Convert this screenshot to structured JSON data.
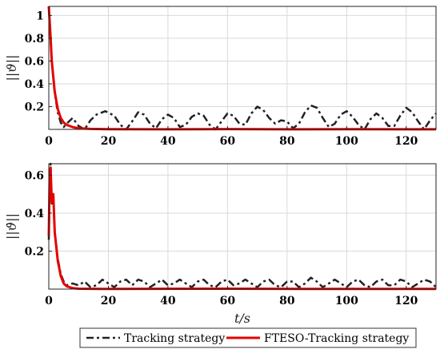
{
  "chart_data": [
    {
      "type": "line",
      "ylabel": "||ϑ||",
      "xlabel": "",
      "xlim": [
        0,
        130
      ],
      "ylim": [
        0,
        1.08
      ],
      "xticks": [
        0,
        20,
        40,
        60,
        80,
        100,
        120
      ],
      "yticks": [
        0.2,
        0.4,
        0.6,
        0.8,
        1
      ],
      "ytick_labels": [
        "0.2",
        "0.4",
        "0.6",
        "0.8",
        "1"
      ],
      "grid": true,
      "series": [
        {
          "name": "Tracking strategy",
          "color": "#222222",
          "dash": "dashdot",
          "points": [
            [
              0,
              1.08
            ],
            [
              1,
              0.6
            ],
            [
              2,
              0.32
            ],
            [
              3,
              0.15
            ],
            [
              4,
              0.06
            ],
            [
              5,
              0.02
            ],
            [
              6,
              0.05
            ],
            [
              8,
              0.1
            ],
            [
              10,
              0.03
            ],
            [
              12,
              0.0
            ],
            [
              14,
              0.08
            ],
            [
              16,
              0.13
            ],
            [
              19,
              0.16
            ],
            [
              22,
              0.12
            ],
            [
              24,
              0.04
            ],
            [
              26,
              0.0
            ],
            [
              28,
              0.07
            ],
            [
              30,
              0.15
            ],
            [
              32,
              0.13
            ],
            [
              34,
              0.05
            ],
            [
              36,
              0.01
            ],
            [
              38,
              0.09
            ],
            [
              40,
              0.13
            ],
            [
              42,
              0.1
            ],
            [
              44,
              0.02
            ],
            [
              46,
              0.04
            ],
            [
              48,
              0.11
            ],
            [
              50,
              0.14
            ],
            [
              52,
              0.12
            ],
            [
              54,
              0.04
            ],
            [
              56,
              0.0
            ],
            [
              58,
              0.07
            ],
            [
              60,
              0.14
            ],
            [
              62,
              0.12
            ],
            [
              64,
              0.05
            ],
            [
              66,
              0.04
            ],
            [
              68,
              0.14
            ],
            [
              70,
              0.2
            ],
            [
              72,
              0.17
            ],
            [
              74,
              0.1
            ],
            [
              76,
              0.05
            ],
            [
              78,
              0.08
            ],
            [
              80,
              0.07
            ],
            [
              82,
              0.01
            ],
            [
              84,
              0.05
            ],
            [
              86,
              0.15
            ],
            [
              88,
              0.21
            ],
            [
              90,
              0.19
            ],
            [
              92,
              0.1
            ],
            [
              94,
              0.02
            ],
            [
              96,
              0.05
            ],
            [
              98,
              0.13
            ],
            [
              100,
              0.16
            ],
            [
              102,
              0.11
            ],
            [
              104,
              0.04
            ],
            [
              106,
              0.0
            ],
            [
              108,
              0.09
            ],
            [
              110,
              0.14
            ],
            [
              112,
              0.1
            ],
            [
              114,
              0.03
            ],
            [
              116,
              0.03
            ],
            [
              118,
              0.12
            ],
            [
              120,
              0.19
            ],
            [
              122,
              0.15
            ],
            [
              124,
              0.07
            ],
            [
              126,
              0.0
            ],
            [
              128,
              0.08
            ],
            [
              130,
              0.14
            ]
          ]
        },
        {
          "name": "FTESO-Tracking strategy",
          "color": "#e60000",
          "dash": "solid",
          "points": [
            [
              0,
              1.08
            ],
            [
              0.5,
              0.85
            ],
            [
              1,
              0.6
            ],
            [
              2,
              0.33
            ],
            [
              3,
              0.18
            ],
            [
              4,
              0.1
            ],
            [
              5,
              0.06
            ],
            [
              6,
              0.04
            ],
            [
              8,
              0.02
            ],
            [
              10,
              0.01
            ],
            [
              14,
              0.004
            ],
            [
              20,
              0.002
            ],
            [
              40,
              0.001
            ],
            [
              60,
              0.003
            ],
            [
              80,
              0.001
            ],
            [
              100,
              0.002
            ],
            [
              120,
              0.001
            ],
            [
              130,
              0.001
            ]
          ]
        }
      ]
    },
    {
      "type": "line",
      "ylabel": "||ϑ̇||",
      "xlabel": "t/s",
      "xlim": [
        0,
        130
      ],
      "ylim": [
        0,
        0.66
      ],
      "xticks": [
        0,
        20,
        40,
        60,
        80,
        100,
        120
      ],
      "yticks": [
        0.2,
        0.4,
        0.6
      ],
      "ytick_labels": [
        "0.2",
        "0.4",
        "0.6"
      ],
      "grid": true,
      "series": [
        {
          "name": "Tracking strategy",
          "color": "#222222",
          "dash": "dashdot",
          "points": [
            [
              0,
              0.26
            ],
            [
              0.3,
              0.55
            ],
            [
              0.6,
              0.66
            ],
            [
              1,
              0.45
            ],
            [
              1.5,
              0.5
            ],
            [
              2,
              0.3
            ],
            [
              3,
              0.16
            ],
            [
              4,
              0.08
            ],
            [
              5,
              0.04
            ],
            [
              6,
              0.02
            ],
            [
              8,
              0.03
            ],
            [
              10,
              0.02
            ],
            [
              12,
              0.04
            ],
            [
              14,
              0.01
            ],
            [
              16,
              0.02
            ],
            [
              18,
              0.05
            ],
            [
              20,
              0.03
            ],
            [
              22,
              0.01
            ],
            [
              24,
              0.04
            ],
            [
              26,
              0.05
            ],
            [
              28,
              0.02
            ],
            [
              30,
              0.05
            ],
            [
              32,
              0.04
            ],
            [
              34,
              0.01
            ],
            [
              36,
              0.03
            ],
            [
              38,
              0.05
            ],
            [
              40,
              0.02
            ],
            [
              42,
              0.03
            ],
            [
              44,
              0.05
            ],
            [
              46,
              0.03
            ],
            [
              48,
              0.01
            ],
            [
              50,
              0.04
            ],
            [
              52,
              0.05
            ],
            [
              54,
              0.02
            ],
            [
              56,
              0.01
            ],
            [
              58,
              0.04
            ],
            [
              60,
              0.05
            ],
            [
              62,
              0.02
            ],
            [
              64,
              0.03
            ],
            [
              66,
              0.05
            ],
            [
              68,
              0.03
            ],
            [
              70,
              0.01
            ],
            [
              72,
              0.04
            ],
            [
              74,
              0.05
            ],
            [
              76,
              0.02
            ],
            [
              78,
              0.01
            ],
            [
              80,
              0.04
            ],
            [
              82,
              0.04
            ],
            [
              84,
              0.01
            ],
            [
              86,
              0.03
            ],
            [
              88,
              0.06
            ],
            [
              90,
              0.04
            ],
            [
              92,
              0.01
            ],
            [
              94,
              0.03
            ],
            [
              96,
              0.05
            ],
            [
              98,
              0.03
            ],
            [
              100,
              0.01
            ],
            [
              102,
              0.04
            ],
            [
              104,
              0.05
            ],
            [
              106,
              0.02
            ],
            [
              108,
              0.01
            ],
            [
              110,
              0.04
            ],
            [
              112,
              0.05
            ],
            [
              114,
              0.02
            ],
            [
              116,
              0.02
            ],
            [
              118,
              0.05
            ],
            [
              120,
              0.04
            ],
            [
              122,
              0.01
            ],
            [
              124,
              0.03
            ],
            [
              126,
              0.05
            ],
            [
              128,
              0.04
            ],
            [
              130,
              0.01
            ]
          ]
        },
        {
          "name": "FTESO-Tracking strategy",
          "color": "#e60000",
          "dash": "solid",
          "points": [
            [
              0,
              0.28
            ],
            [
              0.3,
              0.6
            ],
            [
              0.6,
              0.64
            ],
            [
              1,
              0.46
            ],
            [
              1.5,
              0.5
            ],
            [
              2,
              0.3
            ],
            [
              3,
              0.15
            ],
            [
              4,
              0.07
            ],
            [
              5,
              0.03
            ],
            [
              6,
              0.015
            ],
            [
              8,
              0.005
            ],
            [
              10,
              0.002
            ],
            [
              20,
              0.001
            ],
            [
              60,
              0.002
            ],
            [
              100,
              0.001
            ],
            [
              130,
              0.001
            ]
          ]
        }
      ]
    }
  ],
  "legend": {
    "items": [
      "Tracking strategy",
      "FTESO-Tracking strategy"
    ],
    "position": "bottom"
  }
}
